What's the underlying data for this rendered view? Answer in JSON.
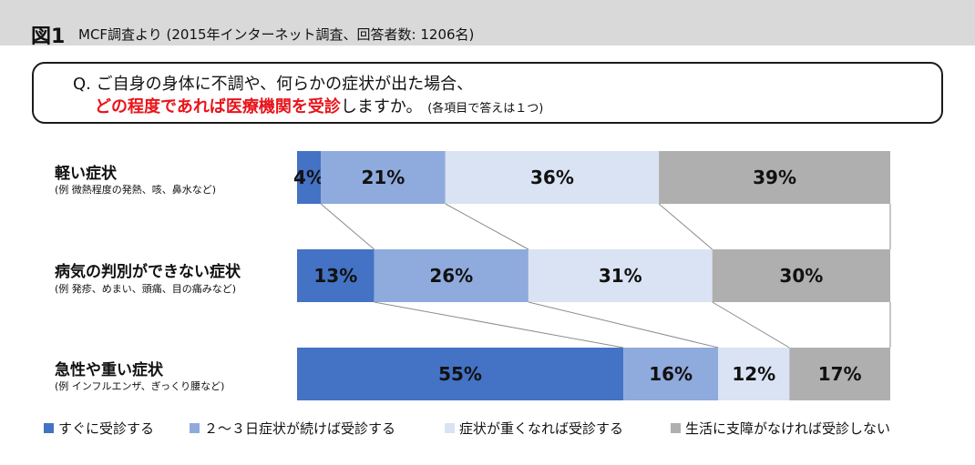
{
  "header": {
    "figure_label": "図1",
    "caption": "MCF調査より (2015年インターネット調査、回答者数: 1206名)"
  },
  "question": {
    "line1": "Q. ご自身の身体に不調や、何らかの症状が出た場合、",
    "line2_red": "どの程度であれば医療機関を受診",
    "line2_rest": "しますか。",
    "line2_note": "(各項目で答えは１つ)"
  },
  "categories": [
    {
      "label": "軽い症状",
      "sub": "(例 微熱程度の発熱、咳、鼻水など)"
    },
    {
      "label": "病気の判別ができない症状",
      "sub": "(例 発疹、めまい、頭痛、目の痛みなど)"
    },
    {
      "label": "急性や重い症状",
      "sub": "(例 インフルエンザ、ぎっくり腰など)"
    }
  ],
  "legend": [
    "すぐに受診する",
    "２～３日症状が続けば受診する",
    "症状が重くなれば受診する",
    "生活に支障がなければ受診しない"
  ],
  "chart_data": {
    "type": "bar",
    "stacked": true,
    "orientation": "horizontal",
    "percent": true,
    "categories": [
      "軽い症状",
      "病気の判別ができない症状",
      "急性や重い症状"
    ],
    "series": [
      {
        "name": "すぐに受診する",
        "values": [
          4,
          13,
          55
        ],
        "labels": [
          "4%",
          "13%",
          "55%"
        ],
        "color": "#4472c4"
      },
      {
        "name": "２～３日症状が続けば受診する",
        "values": [
          21,
          26,
          16
        ],
        "labels": [
          "21%",
          "26%",
          "16%"
        ],
        "color": "#8faadc"
      },
      {
        "name": "症状が重くなれば受診する",
        "values": [
          36,
          31,
          12
        ],
        "labels": [
          "36%",
          "31%",
          "12%"
        ],
        "color": "#dae3f3"
      },
      {
        "name": "生活に支障がなければ受診しない",
        "values": [
          39,
          30,
          17
        ],
        "labels": [
          "39%",
          "30%",
          "17%"
        ],
        "color": "#afafaf"
      }
    ],
    "xlim": [
      0,
      100
    ],
    "legend_position": "bottom",
    "grid": false
  }
}
